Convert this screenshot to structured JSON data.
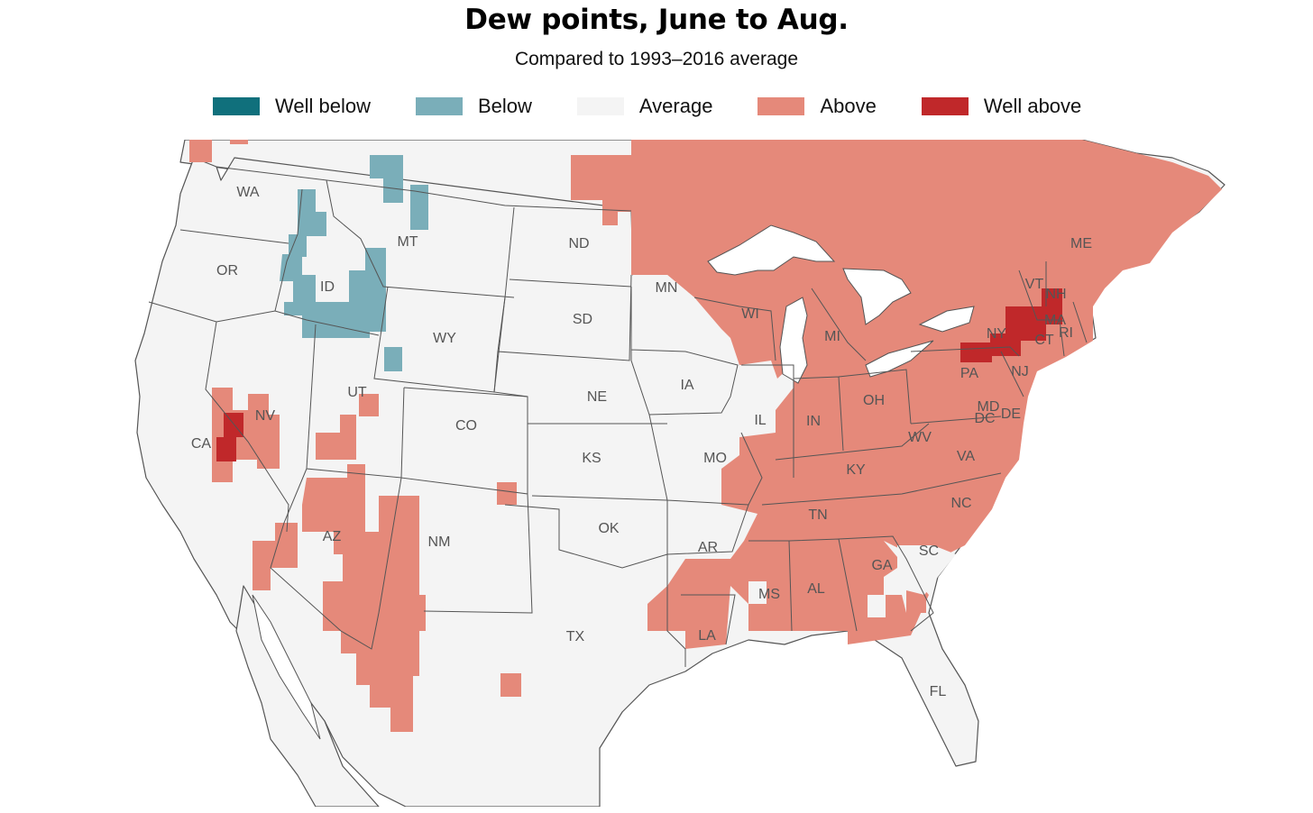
{
  "title": "Dew points, June to Aug.",
  "subtitle": "Compared to 1993–2016 average",
  "legend": [
    {
      "label": "Well below",
      "color": "#10707c"
    },
    {
      "label": "Below",
      "color": "#7aaeb9"
    },
    {
      "label": "Average",
      "color": "#f4f4f4"
    },
    {
      "label": "Above",
      "color": "#e5897a"
    },
    {
      "label": "Well above",
      "color": "#c0282a"
    }
  ],
  "colors": {
    "land": "#f4f4f4",
    "water": "#ffffff",
    "border": "#555555",
    "label": "#555555"
  },
  "state_labels": [
    "WA",
    "OR",
    "CA",
    "NV",
    "ID",
    "MT",
    "WY",
    "UT",
    "AZ",
    "CO",
    "NM",
    "ND",
    "SD",
    "NE",
    "KS",
    "OK",
    "TX",
    "MN",
    "IA",
    "MO",
    "AR",
    "LA",
    "WI",
    "IL",
    "MS",
    "MI",
    "IN",
    "KY",
    "TN",
    "AL",
    "OH",
    "GA",
    "FL",
    "SC",
    "NC",
    "VA",
    "WV",
    "PA",
    "NY",
    "MD",
    "DC",
    "DE",
    "NJ",
    "CT",
    "RI",
    "MA",
    "VT",
    "NH",
    "ME"
  ]
}
